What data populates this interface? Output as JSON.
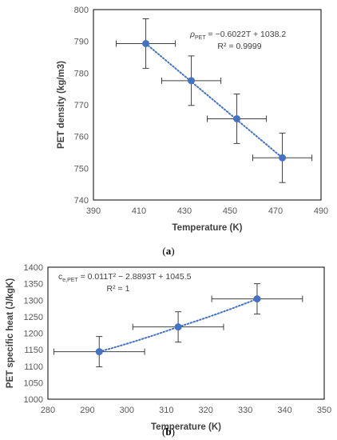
{
  "chart_data": [
    {
      "type": "scatter",
      "title": "",
      "xlabel": "Temperature (K)",
      "ylabel": "PET density (kg/m3)",
      "xlim": [
        390,
        490
      ],
      "ylim": [
        740,
        800
      ],
      "xticks": [
        "390",
        "410",
        "430",
        "450",
        "470",
        "490"
      ],
      "yticks": [
        "740",
        "750",
        "760",
        "770",
        "780",
        "790",
        "800"
      ],
      "grid": false,
      "trendline": "linear, dotted",
      "equation": {
        "symbol": "ρ",
        "subscript": "PET",
        "rhs": " = −0.6022T + 1038.2",
        "r2": "R² = 0.9999"
      },
      "points": [
        {
          "x": 413,
          "y": 789.3,
          "xerr": 13,
          "yerr": 7.8
        },
        {
          "x": 433,
          "y": 777.6,
          "xerr": 13,
          "yerr": 7.8
        },
        {
          "x": 453,
          "y": 765.6,
          "xerr": 13,
          "yerr": 7.8
        },
        {
          "x": 473,
          "y": 753.3,
          "xerr": 13,
          "yerr": 7.8
        }
      ],
      "marker_color": "#4472C4",
      "panel_label": "a"
    },
    {
      "type": "scatter",
      "title": "",
      "xlabel": "Temperature (K)",
      "ylabel": "PET specific heat (J/kgK)",
      "xlim": [
        280,
        350
      ],
      "ylim": [
        1000,
        1400
      ],
      "xticks": [
        "280",
        "290",
        "300",
        "310",
        "320",
        "330",
        "340",
        "350"
      ],
      "yticks": [
        "1000",
        "1050",
        "1100",
        "1150",
        "1200",
        "1250",
        "1300",
        "1350",
        "1400"
      ],
      "grid": false,
      "trendline": "polynomial order 2, dotted",
      "equation": {
        "symbol": "c",
        "subscript": "e,PET",
        "rhs": " = 0.011T² − 2.8893T + 1045.5",
        "r2": "R² = 1"
      },
      "points": [
        {
          "x": 293,
          "y": 1144,
          "xerr": 11.5,
          "yerr": 46
        },
        {
          "x": 313,
          "y": 1219,
          "xerr": 11.5,
          "yerr": 46
        },
        {
          "x": 333,
          "y": 1304,
          "xerr": 11.5,
          "yerr": 46
        }
      ],
      "marker_color": "#4472C4",
      "panel_label": "b"
    }
  ]
}
